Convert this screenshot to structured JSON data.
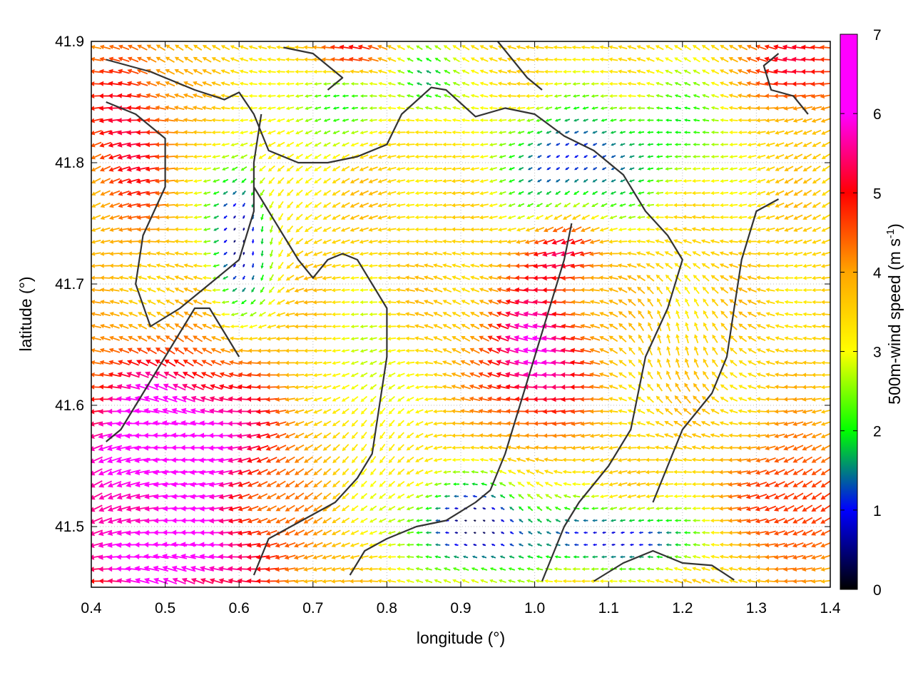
{
  "chart_data": {
    "type": "vector-field",
    "xlabel": "longitude (°)",
    "ylabel": "latitude (°)",
    "xlim": [
      0.4,
      1.4
    ],
    "ylim": [
      41.45,
      41.9
    ],
    "xticks": [
      "0.4",
      "0.5",
      "0.6",
      "0.7",
      "0.8",
      "0.9",
      "1.0",
      "1.1",
      "1.2",
      "1.3",
      "1.4"
    ],
    "yticks": [
      "41.5",
      "41.6",
      "41.7",
      "41.8",
      "41.9"
    ],
    "colorbar": {
      "label_main": "500m-wind speed (m s",
      "label_sup": "-1",
      "label_close": ")",
      "range": [
        0,
        7
      ],
      "ticks": [
        "0",
        "1",
        "2",
        "3",
        "4",
        "5",
        "6",
        "7"
      ],
      "stops": [
        "#000000",
        "#0000ff",
        "#00ff00",
        "#ffff00",
        "#ffa500",
        "#ff0000",
        "#ff00ff"
      ]
    },
    "grid_spacing_deg": [
      0.0125,
      0.01
    ],
    "grid": true,
    "contours": [
      [
        [
          0.42,
          41.885
        ],
        [
          0.48,
          41.875
        ],
        [
          0.54,
          41.86
        ],
        [
          0.58,
          41.852
        ],
        [
          0.6,
          41.858
        ],
        [
          0.62,
          41.84
        ],
        [
          0.64,
          41.81
        ],
        [
          0.68,
          41.8
        ],
        [
          0.72,
          41.8
        ],
        [
          0.76,
          41.805
        ],
        [
          0.8,
          41.815
        ],
        [
          0.82,
          41.84
        ],
        [
          0.86,
          41.862
        ],
        [
          0.88,
          41.86
        ],
        [
          0.92,
          41.838
        ],
        [
          0.96,
          41.845
        ],
        [
          1.0,
          41.84
        ],
        [
          1.04,
          41.822
        ],
        [
          1.08,
          41.81
        ],
        [
          1.12,
          41.79
        ],
        [
          1.15,
          41.76
        ],
        [
          1.18,
          41.74
        ],
        [
          1.2,
          41.72
        ],
        [
          1.18,
          41.68
        ],
        [
          1.15,
          41.64
        ],
        [
          1.13,
          41.58
        ],
        [
          1.1,
          41.55
        ],
        [
          1.06,
          41.52
        ],
        [
          1.04,
          41.5
        ],
        [
          1.02,
          41.47
        ],
        [
          1.01,
          41.455
        ]
      ],
      [
        [
          0.42,
          41.85
        ],
        [
          0.46,
          41.84
        ],
        [
          0.5,
          41.82
        ],
        [
          0.5,
          41.78
        ],
        [
          0.47,
          41.74
        ],
        [
          0.46,
          41.7
        ],
        [
          0.48,
          41.665
        ],
        [
          0.52,
          41.68
        ],
        [
          0.56,
          41.7
        ],
        [
          0.6,
          41.72
        ],
        [
          0.62,
          41.76
        ],
        [
          0.62,
          41.8
        ],
        [
          0.63,
          41.84
        ]
      ],
      [
        [
          0.62,
          41.78
        ],
        [
          0.64,
          41.76
        ],
        [
          0.66,
          41.74
        ],
        [
          0.68,
          41.72
        ],
        [
          0.7,
          41.705
        ],
        [
          0.72,
          41.72
        ],
        [
          0.74,
          41.725
        ],
        [
          0.76,
          41.72
        ],
        [
          0.78,
          41.7
        ],
        [
          0.8,
          41.68
        ],
        [
          0.8,
          41.64
        ],
        [
          0.79,
          41.6
        ],
        [
          0.78,
          41.56
        ],
        [
          0.76,
          41.54
        ],
        [
          0.73,
          41.52
        ],
        [
          0.7,
          41.51
        ],
        [
          0.67,
          41.5
        ],
        [
          0.64,
          41.49
        ],
        [
          0.62,
          41.46
        ]
      ],
      [
        [
          0.42,
          41.57
        ],
        [
          0.44,
          41.58
        ],
        [
          0.46,
          41.6
        ],
        [
          0.48,
          41.62
        ],
        [
          0.5,
          41.64
        ],
        [
          0.52,
          41.66
        ],
        [
          0.54,
          41.68
        ],
        [
          0.56,
          41.68
        ],
        [
          0.58,
          41.66
        ],
        [
          0.6,
          41.64
        ]
      ],
      [
        [
          0.75,
          41.46
        ],
        [
          0.77,
          41.48
        ],
        [
          0.8,
          41.49
        ],
        [
          0.84,
          41.5
        ],
        [
          0.88,
          41.505
        ],
        [
          0.92,
          41.52
        ],
        [
          0.94,
          41.53
        ],
        [
          0.96,
          41.56
        ],
        [
          0.98,
          41.6
        ],
        [
          1.0,
          41.64
        ],
        [
          1.02,
          41.68
        ],
        [
          1.04,
          41.72
        ],
        [
          1.05,
          41.75
        ]
      ],
      [
        [
          1.08,
          41.455
        ],
        [
          1.12,
          41.47
        ],
        [
          1.16,
          41.48
        ],
        [
          1.2,
          41.47
        ],
        [
          1.24,
          41.468
        ],
        [
          1.27,
          41.456
        ]
      ],
      [
        [
          1.33,
          41.77
        ],
        [
          1.3,
          41.76
        ],
        [
          1.28,
          41.72
        ],
        [
          1.27,
          41.68
        ],
        [
          1.26,
          41.64
        ],
        [
          1.24,
          41.61
        ],
        [
          1.2,
          41.58
        ],
        [
          1.18,
          41.55
        ],
        [
          1.16,
          41.52
        ]
      ],
      [
        [
          0.66,
          41.895
        ],
        [
          0.7,
          41.89
        ],
        [
          0.72,
          41.88
        ],
        [
          0.74,
          41.87
        ],
        [
          0.72,
          41.86
        ]
      ],
      [
        [
          0.95,
          41.9
        ],
        [
          0.97,
          41.885
        ],
        [
          0.99,
          41.87
        ],
        [
          1.01,
          41.86
        ]
      ],
      [
        [
          1.33,
          41.89
        ],
        [
          1.31,
          41.88
        ],
        [
          1.32,
          41.86
        ],
        [
          1.35,
          41.855
        ],
        [
          1.37,
          41.84
        ]
      ]
    ]
  }
}
